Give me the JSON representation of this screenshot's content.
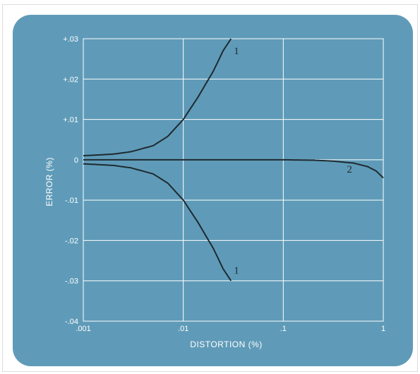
{
  "chart_data": {
    "type": "line",
    "xlabel": "DISTORTION (%)",
    "ylabel": "ERROR (%)",
    "x_scale": "log",
    "xlim": [
      0.001,
      1
    ],
    "ylim": [
      -0.04,
      0.03
    ],
    "x_ticks": [
      ".001",
      ".01",
      ".1",
      "1"
    ],
    "x_tick_values": [
      0.001,
      0.01,
      0.1,
      1
    ],
    "y_ticks": [
      "+.03",
      "+.02",
      "+.01",
      "0",
      "-.01",
      "-.02",
      "-.03",
      "-.04"
    ],
    "y_tick_values": [
      0.03,
      0.02,
      0.01,
      0,
      -0.01,
      -0.02,
      -0.03,
      -0.04
    ],
    "grid": true,
    "series": [
      {
        "name": "1",
        "x": [
          0.001,
          0.002,
          0.003,
          0.005,
          0.007,
          0.01,
          0.014,
          0.02,
          0.025,
          0.03
        ],
        "y": [
          0.001,
          0.0014,
          0.002,
          0.0035,
          0.0058,
          0.01,
          0.0155,
          0.022,
          0.027,
          0.03
        ]
      },
      {
        "name": "1",
        "x": [
          0.001,
          0.002,
          0.003,
          0.005,
          0.007,
          0.01,
          0.014,
          0.02,
          0.025,
          0.03
        ],
        "y": [
          -0.001,
          -0.0014,
          -0.002,
          -0.0035,
          -0.0058,
          -0.01,
          -0.0155,
          -0.022,
          -0.027,
          -0.03
        ]
      },
      {
        "name": "2",
        "x": [
          0.001,
          0.01,
          0.1,
          0.2,
          0.3,
          0.5,
          0.7,
          0.85,
          1.0
        ],
        "y": [
          0.0,
          0.0,
          0.0,
          -0.0001,
          -0.0003,
          -0.0008,
          -0.0017,
          -0.0028,
          -0.0045
        ]
      }
    ],
    "colors": {
      "background": "#5f9bb8",
      "grid": "#ffffff",
      "curve": "#1e2a30"
    }
  }
}
